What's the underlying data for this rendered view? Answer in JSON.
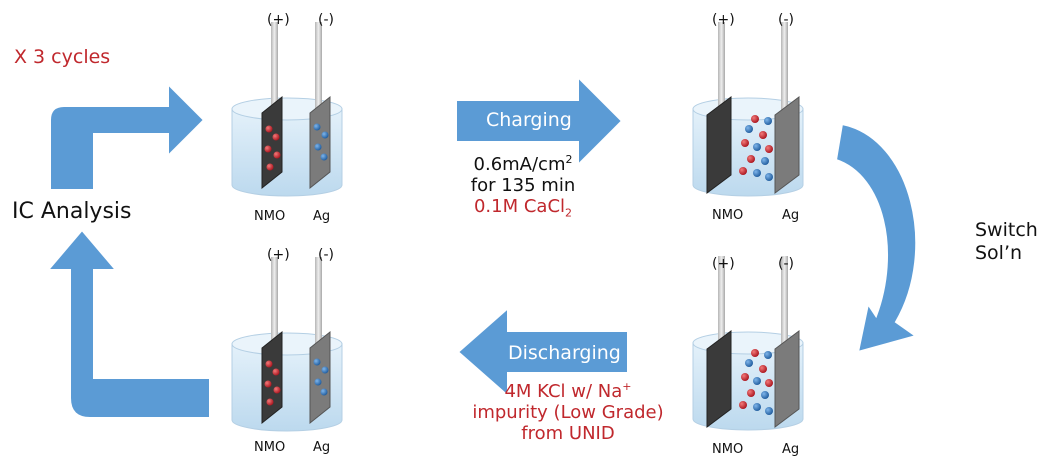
{
  "cycle_note": "X 3 cycles",
  "ic_analysis": "IC Analysis",
  "switch_solution": [
    "Switch",
    "Sol’n"
  ],
  "charging": {
    "label": "Charging",
    "current_prefix": "0.6mA/cm",
    "current_exponent": "2",
    "duration": "for 135 min",
    "solution_prefix": "0.1M CaCl",
    "solution_subscript": "2"
  },
  "discharging": {
    "label": "Discharging",
    "line1_prefix": "4M KCl w/ Na",
    "line1_superscript": "+",
    "line2": "impurity (Low Grade)",
    "line3": "from UNID"
  },
  "cells": {
    "top_left": {
      "plus": "(+)",
      "minus": "(-)",
      "left_label": "NMO",
      "right_label": "Ag"
    },
    "top_right": {
      "plus": "(+)",
      "minus": "(-)",
      "left_label": "NMO",
      "right_label": "Ag"
    },
    "bottom_left": {
      "plus": "(+)",
      "minus": "(-)",
      "left_label": "NMO",
      "right_label": "Ag"
    },
    "bottom_right": {
      "plus": "(+)",
      "minus": "(-)",
      "left_label": "NMO",
      "right_label": "Ag"
    }
  },
  "colors": {
    "arrow_blue": "#5b9bd5",
    "text_red": "#c0282d",
    "cation_red": "#c0202a",
    "anion_blue": "#2e6fb5",
    "electrode_dark": "#3a3a3a",
    "electrode_grey": "#7b7b7b",
    "solution": "#d4e8f6"
  }
}
